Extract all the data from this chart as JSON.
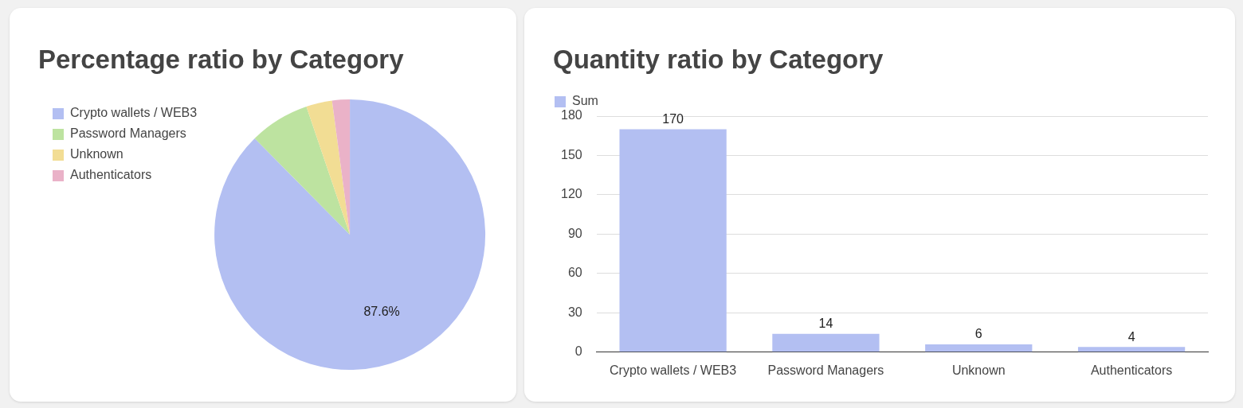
{
  "chart_data": [
    {
      "type": "pie",
      "title": "Percentage ratio by Category",
      "categories": [
        "Crypto wallets / WEB3",
        "Password Managers",
        "Unknown",
        "Authenticators"
      ],
      "values": [
        87.6,
        7.2,
        3.1,
        2.1
      ],
      "colors": [
        "#b3bff2",
        "#bde3a0",
        "#f2dd94",
        "#eab2c8"
      ],
      "value_labels": [
        "87.6%",
        null,
        null,
        null
      ],
      "legend": "left"
    },
    {
      "type": "bar",
      "title": "Quantity ratio by Category",
      "categories": [
        "Crypto wallets / WEB3",
        "Password Managers",
        "Unknown",
        "Authenticators"
      ],
      "series": [
        {
          "name": "Sum",
          "color": "#b3bff2",
          "values": [
            170,
            14,
            6,
            4
          ]
        }
      ],
      "ylim": [
        0,
        180
      ],
      "yticks": [
        0,
        30,
        60,
        90,
        120,
        150,
        180
      ],
      "grid": "y",
      "legend": "top left",
      "data_labels": true
    }
  ]
}
